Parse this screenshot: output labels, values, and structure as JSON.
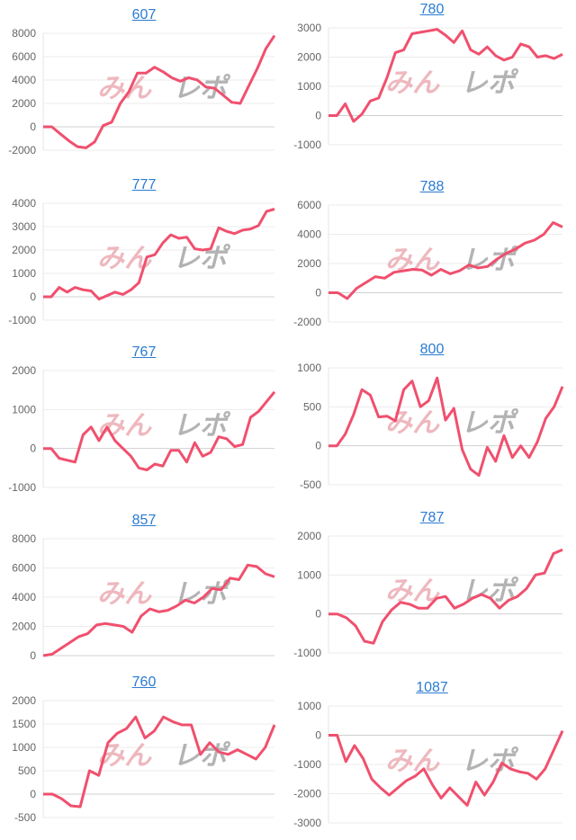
{
  "watermark": "みんレポ",
  "line_color": "#f0506e",
  "chart_data": [
    {
      "type": "line",
      "title": "607",
      "ylim": [
        -2000,
        8000
      ],
      "yticks": [
        -2000,
        0,
        2000,
        4000,
        6000,
        8000
      ],
      "values": [
        0,
        0,
        -600,
        -1200,
        -1700,
        -1800,
        -1300,
        100,
        400,
        2000,
        3000,
        4600,
        4600,
        5100,
        4700,
        4200,
        3900,
        4200,
        4000,
        3400,
        3300,
        2700,
        2100,
        2000,
        3500,
        5000,
        6700,
        7800
      ]
    },
    {
      "type": "line",
      "title": "780",
      "ylim": [
        -1000,
        3000
      ],
      "yticks": [
        -1000,
        0,
        1000,
        2000,
        3000
      ],
      "values": [
        0,
        0,
        400,
        -200,
        50,
        500,
        600,
        1300,
        2150,
        2250,
        2800,
        2850,
        2900,
        2950,
        2750,
        2500,
        2900,
        2250,
        2100,
        2350,
        2050,
        1900,
        2000,
        2450,
        2350,
        2000,
        2050,
        1950,
        2100
      ]
    },
    {
      "type": "line",
      "title": "777",
      "ylim": [
        -1000,
        4000
      ],
      "yticks": [
        -1000,
        0,
        1000,
        2000,
        3000,
        4000
      ],
      "values": [
        0,
        0,
        400,
        200,
        400,
        300,
        250,
        -100,
        50,
        200,
        100,
        300,
        600,
        1700,
        1800,
        2300,
        2650,
        2500,
        2550,
        2050,
        2000,
        2050,
        2950,
        2800,
        2700,
        2850,
        2900,
        3050,
        3650,
        3750
      ]
    },
    {
      "type": "line",
      "title": "788",
      "ylim": [
        -2000,
        6000
      ],
      "yticks": [
        -2000,
        0,
        2000,
        4000,
        6000
      ],
      "values": [
        0,
        0,
        -400,
        300,
        700,
        1100,
        1000,
        1400,
        1500,
        1600,
        1550,
        1200,
        1600,
        1300,
        1500,
        1900,
        1700,
        1800,
        2300,
        2700,
        3000,
        3400,
        3600,
        4000,
        4800,
        4500
      ]
    },
    {
      "type": "line",
      "title": "767",
      "ylim": [
        -1000,
        2000
      ],
      "yticks": [
        -1000,
        0,
        1000,
        2000
      ],
      "values": [
        0,
        0,
        -250,
        -300,
        -350,
        350,
        550,
        200,
        550,
        200,
        0,
        -200,
        -500,
        -550,
        -400,
        -450,
        -50,
        -50,
        -350,
        150,
        -200,
        -100,
        300,
        250,
        50,
        100,
        800,
        950,
        1200,
        1450
      ]
    },
    {
      "type": "line",
      "title": "800",
      "ylim": [
        -500,
        1000
      ],
      "yticks": [
        -500,
        0,
        500,
        1000
      ],
      "values": [
        0,
        0,
        150,
        400,
        720,
        650,
        370,
        380,
        320,
        720,
        830,
        500,
        580,
        870,
        330,
        480,
        -50,
        -300,
        -380,
        -20,
        -200,
        130,
        -150,
        0,
        -150,
        50,
        350,
        500,
        760
      ]
    },
    {
      "type": "line",
      "title": "857",
      "ylim": [
        0,
        8000
      ],
      "yticks": [
        0,
        2000,
        4000,
        6000,
        8000
      ],
      "values": [
        0,
        100,
        500,
        900,
        1300,
        1500,
        2100,
        2200,
        2100,
        2000,
        1600,
        2700,
        3200,
        3000,
        3100,
        3400,
        3800,
        3600,
        4000,
        4600,
        4500,
        5300,
        5200,
        6200,
        6100,
        5600,
        5400
      ]
    },
    {
      "type": "line",
      "title": "787",
      "ylim": [
        -1000,
        2000
      ],
      "yticks": [
        -1000,
        0,
        1000,
        2000
      ],
      "values": [
        0,
        0,
        -100,
        -300,
        -700,
        -750,
        -200,
        100,
        300,
        250,
        150,
        150,
        400,
        450,
        150,
        250,
        400,
        500,
        400,
        150,
        350,
        450,
        650,
        1000,
        1050,
        1550,
        1650
      ]
    },
    {
      "type": "line",
      "title": "760",
      "ylim": [
        -500,
        2000
      ],
      "yticks": [
        -500,
        0,
        500,
        1000,
        1500,
        2000
      ],
      "values": [
        0,
        0,
        -100,
        -250,
        -270,
        500,
        400,
        1100,
        1300,
        1400,
        1650,
        1200,
        1350,
        1650,
        1550,
        1480,
        1480,
        850,
        1100,
        900,
        850,
        950,
        850,
        750,
        1000,
        1480
      ]
    },
    {
      "type": "line",
      "title": "1087",
      "ylim": [
        -3000,
        1000
      ],
      "yticks": [
        -3000,
        -2000,
        -1000,
        0,
        1000
      ],
      "values": [
        0,
        0,
        -900,
        -350,
        -800,
        -1500,
        -1800,
        -2050,
        -1800,
        -1550,
        -1400,
        -1150,
        -1700,
        -2150,
        -1800,
        -2100,
        -2400,
        -1600,
        -2050,
        -1600,
        -950,
        -1150,
        -1250,
        -1300,
        -1500,
        -1150,
        -500,
        150
      ]
    }
  ]
}
